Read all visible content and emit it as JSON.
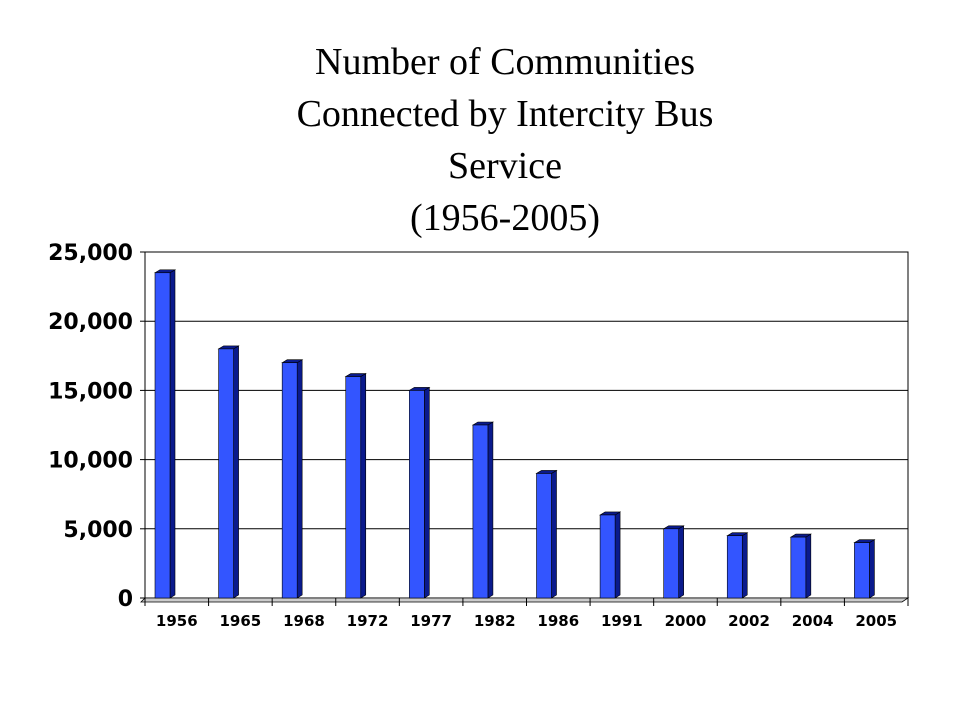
{
  "title_lines": [
    "Number of Communities",
    "Connected by Intercity Bus",
    "Service",
    "(1956-2005)"
  ],
  "chart_data": {
    "type": "bar",
    "title": "Number of Communities Connected by Intercity Bus Service (1956-2005)",
    "xlabel": "",
    "ylabel": "",
    "categories": [
      "1956",
      "1965",
      "1968",
      "1972",
      "1977",
      "1982",
      "1986",
      "1991",
      "2000",
      "2002",
      "2004",
      "2005"
    ],
    "values": [
      23500,
      18000,
      17000,
      16000,
      15000,
      12500,
      9000,
      6000,
      5000,
      4500,
      4400,
      4000
    ],
    "ylim": [
      0,
      25000
    ],
    "yticks": [
      "0",
      "5,000",
      "10,000",
      "15,000",
      "20,000",
      "25,000"
    ],
    "ytick_values": [
      0,
      5000,
      10000,
      15000,
      20000,
      25000
    ],
    "grid": true,
    "legend": "none",
    "bar_color": "#3355ff"
  }
}
